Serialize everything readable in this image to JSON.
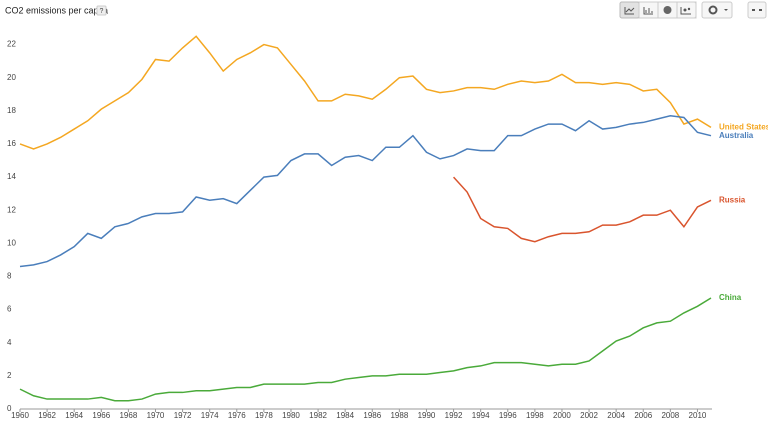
{
  "chart_data": {
    "type": "line",
    "title": "CO2 emissions per capita",
    "help": "?",
    "x": [
      1960,
      1961,
      1962,
      1963,
      1964,
      1965,
      1966,
      1967,
      1968,
      1969,
      1970,
      1971,
      1972,
      1973,
      1974,
      1975,
      1976,
      1977,
      1978,
      1979,
      1980,
      1981,
      1982,
      1983,
      1984,
      1985,
      1986,
      1987,
      1988,
      1989,
      1990,
      1991,
      1992,
      1993,
      1994,
      1995,
      1996,
      1997,
      1998,
      1999,
      2000,
      2001,
      2002,
      2003,
      2004,
      2005,
      2006,
      2007,
      2008,
      2009,
      2010,
      2011
    ],
    "series": [
      {
        "name": "United States",
        "color": "#f4a721",
        "values": [
          16.0,
          15.7,
          16.0,
          16.4,
          16.9,
          17.4,
          18.1,
          18.6,
          19.1,
          19.9,
          21.1,
          21.0,
          21.8,
          22.5,
          21.5,
          20.4,
          21.1,
          21.5,
          22.0,
          21.8,
          20.8,
          19.8,
          18.6,
          18.6,
          19.0,
          18.9,
          18.7,
          19.3,
          20.0,
          20.1,
          19.3,
          19.1,
          19.2,
          19.4,
          19.4,
          19.3,
          19.6,
          19.8,
          19.7,
          19.8,
          20.2,
          19.7,
          19.7,
          19.6,
          19.7,
          19.6,
          19.2,
          19.3,
          18.5,
          17.2,
          17.5,
          17.0
        ]
      },
      {
        "name": "Australia",
        "color": "#4a7ebb",
        "values": [
          8.6,
          8.7,
          8.9,
          9.3,
          9.8,
          10.6,
          10.3,
          11.0,
          11.2,
          11.6,
          11.8,
          11.8,
          11.9,
          12.8,
          12.6,
          12.7,
          12.4,
          13.2,
          14.0,
          14.1,
          15.0,
          15.4,
          15.4,
          14.7,
          15.2,
          15.3,
          15.0,
          15.8,
          15.8,
          16.5,
          15.5,
          15.1,
          15.3,
          15.7,
          15.6,
          15.6,
          16.5,
          16.5,
          16.9,
          17.2,
          17.2,
          16.8,
          17.4,
          16.9,
          17.0,
          17.2,
          17.3,
          17.5,
          17.7,
          17.6,
          16.7,
          16.5
        ]
      },
      {
        "name": "Russia",
        "color": "#d9542d",
        "values": [
          null,
          null,
          null,
          null,
          null,
          null,
          null,
          null,
          null,
          null,
          null,
          null,
          null,
          null,
          null,
          null,
          null,
          null,
          null,
          null,
          null,
          null,
          null,
          null,
          null,
          null,
          null,
          null,
          null,
          null,
          null,
          null,
          14.0,
          13.1,
          11.5,
          11.0,
          10.9,
          10.3,
          10.1,
          10.4,
          10.6,
          10.6,
          10.7,
          11.1,
          11.1,
          11.3,
          11.7,
          11.7,
          12.0,
          11.0,
          12.2,
          12.6
        ]
      },
      {
        "name": "China",
        "color": "#4aaa3a",
        "values": [
          1.2,
          0.8,
          0.6,
          0.6,
          0.6,
          0.6,
          0.7,
          0.5,
          0.5,
          0.6,
          0.9,
          1.0,
          1.0,
          1.1,
          1.1,
          1.2,
          1.3,
          1.3,
          1.5,
          1.5,
          1.5,
          1.5,
          1.6,
          1.6,
          1.8,
          1.9,
          2.0,
          2.0,
          2.1,
          2.1,
          2.1,
          2.2,
          2.3,
          2.5,
          2.6,
          2.8,
          2.8,
          2.8,
          2.7,
          2.6,
          2.7,
          2.7,
          2.9,
          3.5,
          4.1,
          4.4,
          4.9,
          5.2,
          5.3,
          5.8,
          6.2,
          6.7
        ]
      }
    ],
    "xlim": [
      1960,
      2011
    ],
    "xticks": [
      1960,
      1962,
      1964,
      1966,
      1968,
      1970,
      1972,
      1974,
      1976,
      1978,
      1980,
      1982,
      1984,
      1986,
      1988,
      1990,
      1992,
      1994,
      1996,
      1998,
      2000,
      2002,
      2004,
      2006,
      2008,
      2010
    ],
    "ylim": [
      0,
      23
    ],
    "yticks": [
      0,
      2,
      4,
      6,
      8,
      10,
      12,
      14,
      16,
      18,
      20,
      22
    ],
    "grid": false
  }
}
